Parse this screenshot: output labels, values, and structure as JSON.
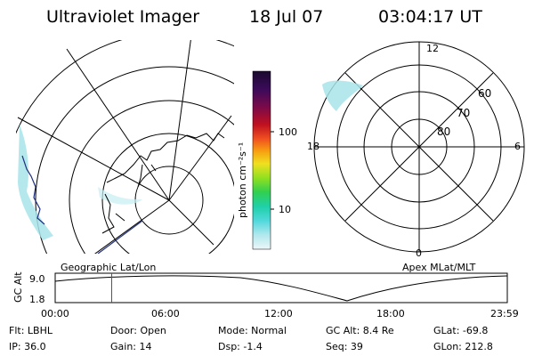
{
  "header": {
    "instrument": "Ultraviolet Imager",
    "date": "18 Jul 07",
    "time": "03:04:17 UT"
  },
  "geo_panel": {
    "label": "Geographic Lat/Lon"
  },
  "apex_panel": {
    "label": "Apex  MLat/MLT",
    "mlt_labels": {
      "top": "12",
      "right": "6",
      "bottom": "0",
      "left": "18"
    },
    "lat_labels": [
      "60",
      "70",
      "80"
    ]
  },
  "colorbar": {
    "unit_label": "photon cm⁻²s⁻¹",
    "ticks": [
      "100",
      "10"
    ],
    "colors": [
      "#1a0a2e",
      "#3a0a5a",
      "#6a0a5a",
      "#a00030",
      "#d02020",
      "#f05020",
      "#f8a010",
      "#f0e020",
      "#b0e020",
      "#50d040",
      "#20d0a0",
      "#40d8d8",
      "#a0e8ec",
      "#e8f4f6"
    ]
  },
  "timeline": {
    "axis_label": "GC Alt",
    "y_ticks": [
      "9.0",
      "1.8"
    ],
    "x_ticks": [
      "00:00",
      "06:00",
      "12:00",
      "18:00",
      "23:59"
    ],
    "current_time_fraction": 0.125
  },
  "status": {
    "flt": "Flt: LBHL",
    "ip": "IP: 36.0",
    "door": "Door: Open",
    "gain": "Gain: 14",
    "mode": "Mode: Normal",
    "dsp": "Dsp:   -1.4",
    "gc_alt": "GC Alt: 8.4 Re",
    "seq": "Seq: 39",
    "glat": "GLat: -69.8",
    "glon": "GLon: 212.8"
  },
  "colors": {
    "aurora": "#a8e4ea",
    "marker": "#d02020",
    "coast": "#203080"
  }
}
